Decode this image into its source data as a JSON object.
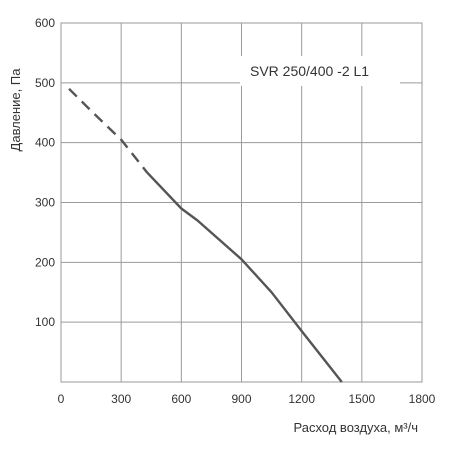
{
  "chart_data": {
    "type": "line",
    "title": "",
    "annotation": "SVR 250/400 -2 L1",
    "xlabel": "Расход воздуха, м³/ч",
    "ylabel": "Давление, Па",
    "xlim": [
      0,
      1800
    ],
    "ylim": [
      0,
      600
    ],
    "x_ticks": [
      "0",
      "300",
      "600",
      "900",
      "1200",
      "1500",
      "1800"
    ],
    "y_ticks": [
      "100",
      "200",
      "300",
      "400",
      "500",
      "600"
    ],
    "grid": true,
    "series": [
      {
        "style": "dashed",
        "color": "#555555",
        "x": [
          40,
          160,
          300,
          430
        ],
        "y": [
          490,
          450,
          405,
          350
        ]
      },
      {
        "style": "solid",
        "color": "#555555",
        "x": [
          430,
          600,
          680,
          900,
          1050,
          1200,
          1400
        ],
        "y": [
          350,
          290,
          270,
          205,
          150,
          85,
          0
        ]
      }
    ]
  }
}
